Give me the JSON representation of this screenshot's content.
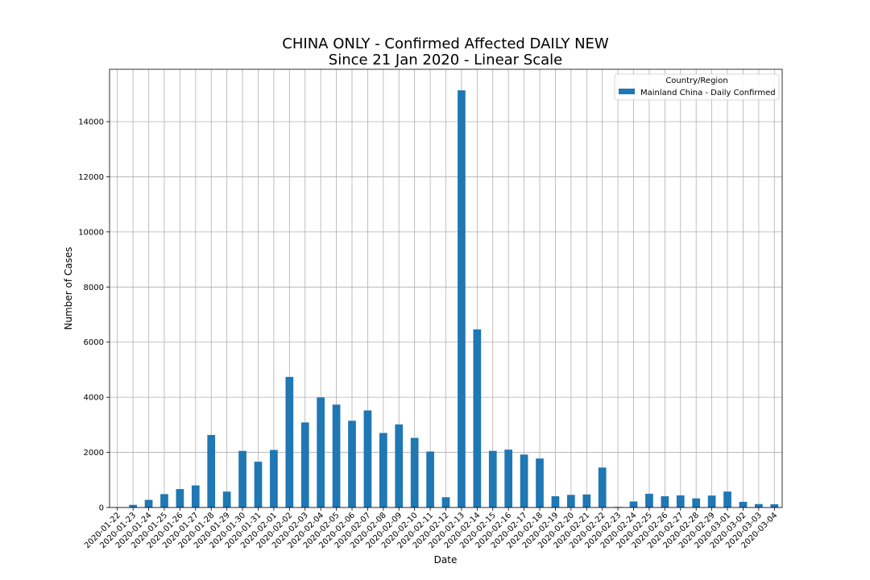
{
  "chart_data": {
    "type": "bar",
    "title": "CHINA ONLY - Confirmed Affected DAILY NEW",
    "subtitle": "Since 21 Jan 2020 - Linear Scale",
    "xlabel": "Date",
    "ylabel": "Number of Cases",
    "ylim": [
      0,
      15900
    ],
    "yticks": [
      0,
      2000,
      4000,
      6000,
      8000,
      10000,
      12000,
      14000
    ],
    "grid": true,
    "legend": {
      "title": "Country/Region",
      "placement": "top-right"
    },
    "categories": [
      "2020-01-22",
      "2020-01-23",
      "2020-01-24",
      "2020-01-25",
      "2020-01-26",
      "2020-01-27",
      "2020-01-28",
      "2020-01-29",
      "2020-01-30",
      "2020-01-31",
      "2020-02-01",
      "2020-02-02",
      "2020-02-03",
      "2020-02-04",
      "2020-02-05",
      "2020-02-06",
      "2020-02-07",
      "2020-02-08",
      "2020-02-09",
      "2020-02-10",
      "2020-02-11",
      "2020-02-12",
      "2020-02-13",
      "2020-02-14",
      "2020-02-15",
      "2020-02-16",
      "2020-02-17",
      "2020-02-18",
      "2020-02-19",
      "2020-02-20",
      "2020-02-21",
      "2020-02-22",
      "2020-02-23",
      "2020-02-24",
      "2020-02-25",
      "2020-02-26",
      "2020-02-27",
      "2020-02-28",
      "2020-02-29",
      "2020-03-01",
      "2020-03-02",
      "2020-03-03",
      "2020-03-04"
    ],
    "series": [
      {
        "name": "Mainland China - Daily Confirmed",
        "color": "#1f77b4",
        "values": [
          0,
          95,
          277,
          486,
          669,
          802,
          2632,
          578,
          2054,
          1661,
          2089,
          4739,
          3086,
          3991,
          3733,
          3147,
          3523,
          2704,
          3015,
          2525,
          2032,
          373,
          15136,
          6463,
          2055,
          2100,
          1921,
          1777,
          408,
          458,
          473,
          1451,
          21,
          219,
          499,
          409,
          439,
          331,
          433,
          579,
          206,
          125,
          119
        ]
      }
    ]
  }
}
